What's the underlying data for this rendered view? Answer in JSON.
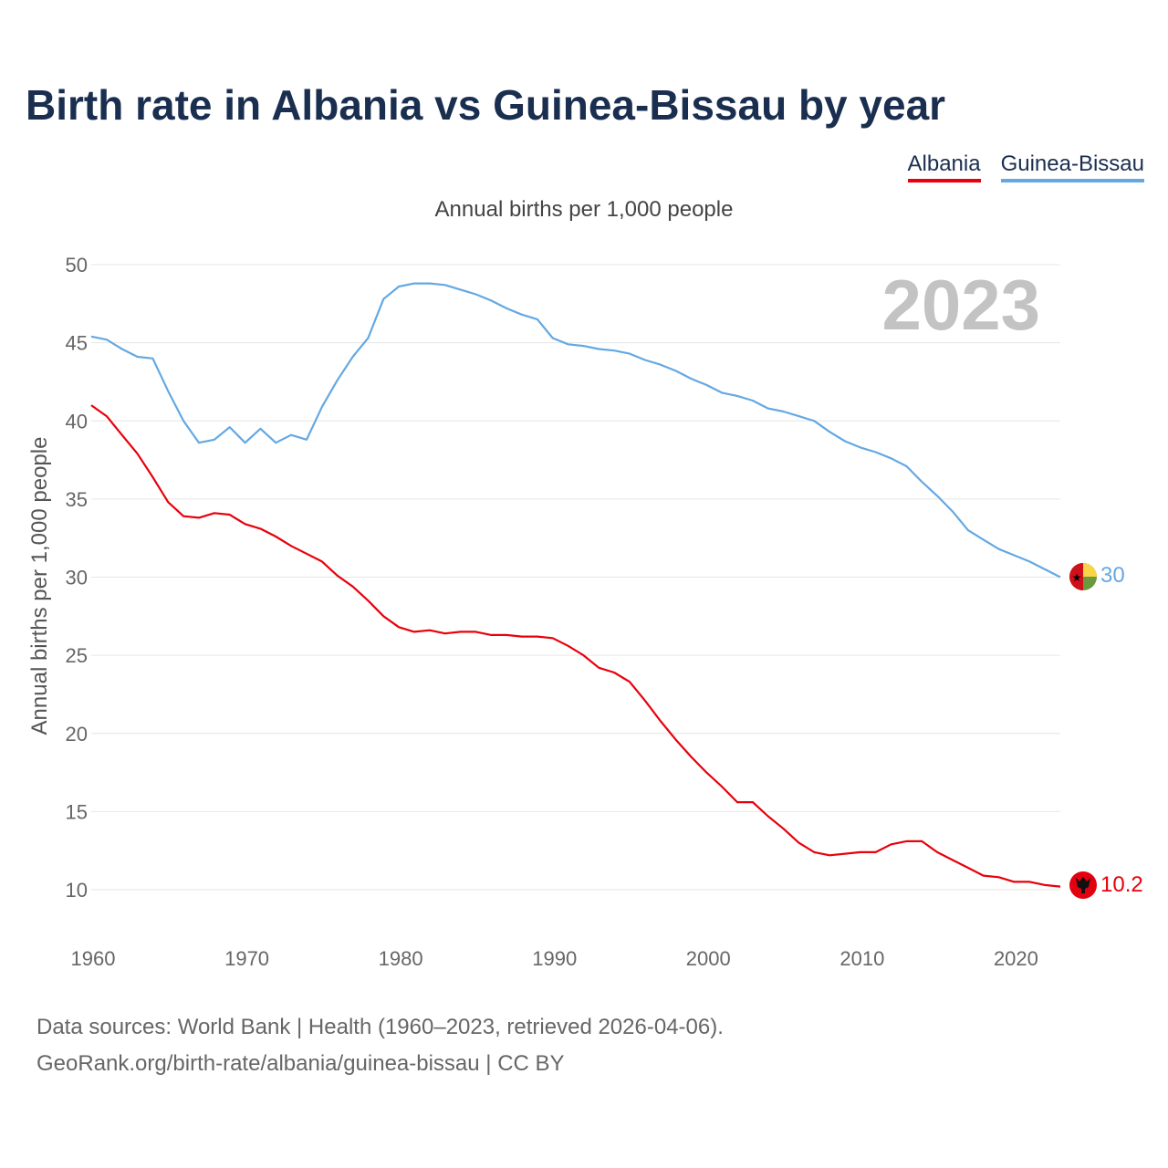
{
  "title": "Birth rate in Albania vs Guinea-Bissau by year",
  "legend": {
    "albania": "Albania",
    "guinea_bissau": "Guinea-Bissau"
  },
  "subtitle": "Annual births per 1,000 people",
  "year_watermark": "2023",
  "source": {
    "line1": "Data sources: World Bank | Health (1960–2023, retrieved 2026-04-06).",
    "line2": "GeoRank.org/birth-rate/albania/guinea-bissau | CC BY"
  },
  "colors": {
    "albania": "#e8000b",
    "guinea_bissau": "#64a8e2",
    "grid": "#e6e6e6",
    "title": "#1a2e4f"
  },
  "icons": {
    "albania_flag": "albania-flag-icon",
    "guinea_bissau_flag": "guinea-bissau-flag-icon"
  },
  "chart_data": {
    "type": "line",
    "title": "Birth rate in Albania vs Guinea-Bissau by year",
    "xlabel": "",
    "ylabel": "Annual births per 1,000 people",
    "xlim": [
      1960,
      2023
    ],
    "ylim": [
      10,
      50
    ],
    "yticks": [
      10,
      15,
      20,
      25,
      30,
      35,
      40,
      45,
      50
    ],
    "xticks": [
      1960,
      1970,
      1980,
      1990,
      2000,
      2010,
      2020
    ],
    "grid": true,
    "legend_position": "top-right",
    "x": [
      1960,
      1961,
      1962,
      1963,
      1964,
      1965,
      1966,
      1967,
      1968,
      1969,
      1970,
      1971,
      1972,
      1973,
      1974,
      1975,
      1976,
      1977,
      1978,
      1979,
      1980,
      1981,
      1982,
      1983,
      1984,
      1985,
      1986,
      1987,
      1988,
      1989,
      1990,
      1991,
      1992,
      1993,
      1994,
      1995,
      1996,
      1997,
      1998,
      1999,
      2000,
      2001,
      2002,
      2003,
      2004,
      2005,
      2006,
      2007,
      2008,
      2009,
      2010,
      2011,
      2012,
      2013,
      2014,
      2015,
      2016,
      2017,
      2018,
      2019,
      2020,
      2021,
      2022,
      2023
    ],
    "series": [
      {
        "name": "Albania",
        "end_label": "10.2",
        "values": [
          41.0,
          40.3,
          39.1,
          37.9,
          36.4,
          34.8,
          33.9,
          33.8,
          34.1,
          34.0,
          33.4,
          33.1,
          32.6,
          32.0,
          31.5,
          31.0,
          30.1,
          29.4,
          28.5,
          27.5,
          26.8,
          26.5,
          26.6,
          26.4,
          26.5,
          26.5,
          26.3,
          26.3,
          26.2,
          26.2,
          26.1,
          25.6,
          25.0,
          24.2,
          23.9,
          23.3,
          22.1,
          20.8,
          19.6,
          18.5,
          17.5,
          16.6,
          15.6,
          15.6,
          14.7,
          13.9,
          13.0,
          12.4,
          12.2,
          12.3,
          12.4,
          12.4,
          12.9,
          13.1,
          13.1,
          12.4,
          11.9,
          11.4,
          10.9,
          10.8,
          10.5,
          10.5,
          10.3,
          10.2
        ]
      },
      {
        "name": "Guinea-Bissau",
        "end_label": "30",
        "values": [
          45.4,
          45.2,
          44.6,
          44.1,
          44.0,
          41.9,
          40.0,
          38.6,
          38.8,
          39.6,
          38.6,
          39.5,
          38.6,
          39.1,
          38.8,
          40.9,
          42.6,
          44.1,
          45.3,
          47.8,
          48.6,
          48.8,
          48.8,
          48.7,
          48.4,
          48.1,
          47.7,
          47.2,
          46.8,
          46.5,
          45.3,
          44.9,
          44.8,
          44.6,
          44.5,
          44.3,
          43.9,
          43.6,
          43.2,
          42.7,
          42.3,
          41.8,
          41.6,
          41.3,
          40.8,
          40.6,
          40.3,
          40.0,
          39.3,
          38.7,
          38.3,
          38.0,
          37.6,
          37.1,
          36.1,
          35.2,
          34.2,
          33.0,
          32.4,
          31.8,
          31.4,
          31.0,
          30.5,
          30.0
        ]
      }
    ]
  }
}
